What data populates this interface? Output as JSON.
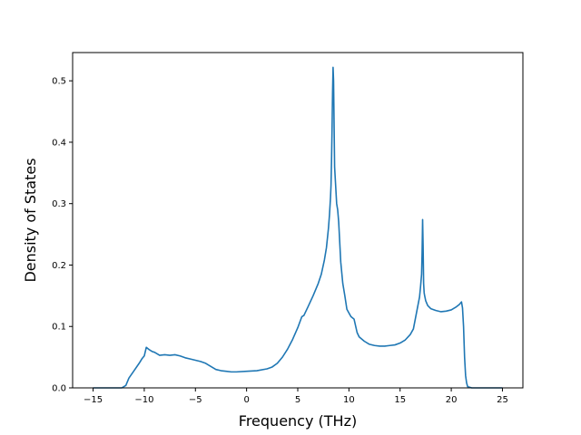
{
  "chart_data": {
    "type": "line",
    "title": "",
    "xlabel": "Frequency (THz)",
    "ylabel": "Density of States",
    "xlim": [
      -17.0,
      27.0
    ],
    "ylim": [
      0.0,
      0.546
    ],
    "x_ticks": [
      -15,
      -10,
      -5,
      0,
      5,
      10,
      15,
      20,
      25
    ],
    "x_tick_labels": [
      "−15",
      "−10",
      "−5",
      "0",
      "5",
      "10",
      "15",
      "20",
      "25"
    ],
    "y_ticks": [
      0.0,
      0.1,
      0.2,
      0.3,
      0.4,
      0.5
    ],
    "y_tick_labels": [
      "0.0",
      "0.1",
      "0.2",
      "0.3",
      "0.4",
      "0.5"
    ],
    "grid": false,
    "legend": "none",
    "series": [
      {
        "color": "#1f77b4",
        "x": [
          -15,
          -14,
          -13,
          -12.2,
          -11.8,
          -11.5,
          -11,
          -10.5,
          -10.2,
          -10.0,
          -9.8,
          -9.5,
          -9.2,
          -9.0,
          -8.7,
          -8.5,
          -8,
          -7.5,
          -7,
          -6.5,
          -6,
          -5.5,
          -5,
          -4.5,
          -4,
          -3.5,
          -3,
          -2.5,
          -2,
          -1.5,
          -1,
          0,
          1,
          2,
          2.5,
          3,
          3.5,
          4,
          4.5,
          5,
          5.2,
          5.4,
          5.6,
          6,
          6.5,
          7,
          7.3,
          7.6,
          7.8,
          8.0,
          8.1,
          8.2,
          8.25,
          8.3,
          8.35,
          8.4,
          8.45,
          8.5,
          8.6,
          8.7,
          8.8,
          8.9,
          9.0,
          9.2,
          9.4,
          9.6,
          9.8,
          10,
          10.2,
          10.5,
          10.8,
          11,
          11.5,
          12,
          12.5,
          13,
          13.5,
          14,
          14.5,
          15,
          15.5,
          16,
          16.3,
          16.6,
          16.9,
          17.0,
          17.1,
          17.15,
          17.2,
          17.25,
          17.3,
          17.35,
          17.4,
          17.5,
          17.7,
          18,
          18.5,
          19,
          19.5,
          20,
          20.5,
          20.8,
          21.0,
          21.1,
          21.2,
          21.3,
          21.4,
          21.5,
          21.6,
          22,
          23,
          24,
          25
        ],
        "values": [
          0.0,
          0.0,
          0.0,
          0.0,
          0.004,
          0.016,
          0.028,
          0.04,
          0.048,
          0.052,
          0.066,
          0.062,
          0.059,
          0.058,
          0.055,
          0.053,
          0.054,
          0.053,
          0.054,
          0.052,
          0.049,
          0.047,
          0.045,
          0.043,
          0.04,
          0.035,
          0.03,
          0.028,
          0.027,
          0.026,
          0.026,
          0.027,
          0.028,
          0.031,
          0.034,
          0.04,
          0.05,
          0.063,
          0.079,
          0.098,
          0.107,
          0.116,
          0.118,
          0.132,
          0.15,
          0.17,
          0.185,
          0.208,
          0.228,
          0.26,
          0.282,
          0.31,
          0.33,
          0.37,
          0.42,
          0.48,
          0.522,
          0.5,
          0.36,
          0.33,
          0.3,
          0.29,
          0.27,
          0.205,
          0.17,
          0.15,
          0.128,
          0.122,
          0.116,
          0.112,
          0.09,
          0.083,
          0.076,
          0.071,
          0.069,
          0.068,
          0.068,
          0.069,
          0.07,
          0.073,
          0.078,
          0.087,
          0.096,
          0.122,
          0.148,
          0.165,
          0.185,
          0.22,
          0.274,
          0.23,
          0.17,
          0.155,
          0.15,
          0.142,
          0.134,
          0.129,
          0.126,
          0.124,
          0.125,
          0.127,
          0.132,
          0.136,
          0.14,
          0.13,
          0.1,
          0.05,
          0.02,
          0.008,
          0.002,
          0.0,
          0.0,
          0.0,
          0.0
        ]
      }
    ]
  }
}
